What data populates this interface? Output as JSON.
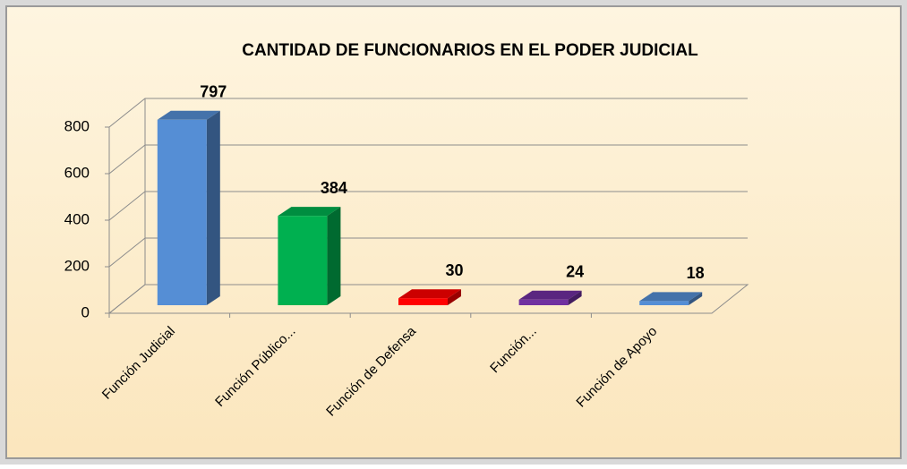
{
  "chart_data": {
    "type": "bar3d",
    "title": "CANTIDAD DE FUNCIONARIOS EN EL PODER JUDICIAL",
    "categories": [
      "Función Judicial",
      "Función Público...",
      "Función de Defensa",
      "Función...",
      "Función de Apoyo"
    ],
    "values": [
      797,
      384,
      30,
      24,
      18
    ],
    "colors": [
      "#558ed5",
      "#00b050",
      "#ff0000",
      "#7030a0",
      "#558ed5"
    ],
    "ylim": [
      0,
      800
    ],
    "yticks": [
      0,
      200,
      400,
      600,
      800
    ],
    "grid": true
  }
}
